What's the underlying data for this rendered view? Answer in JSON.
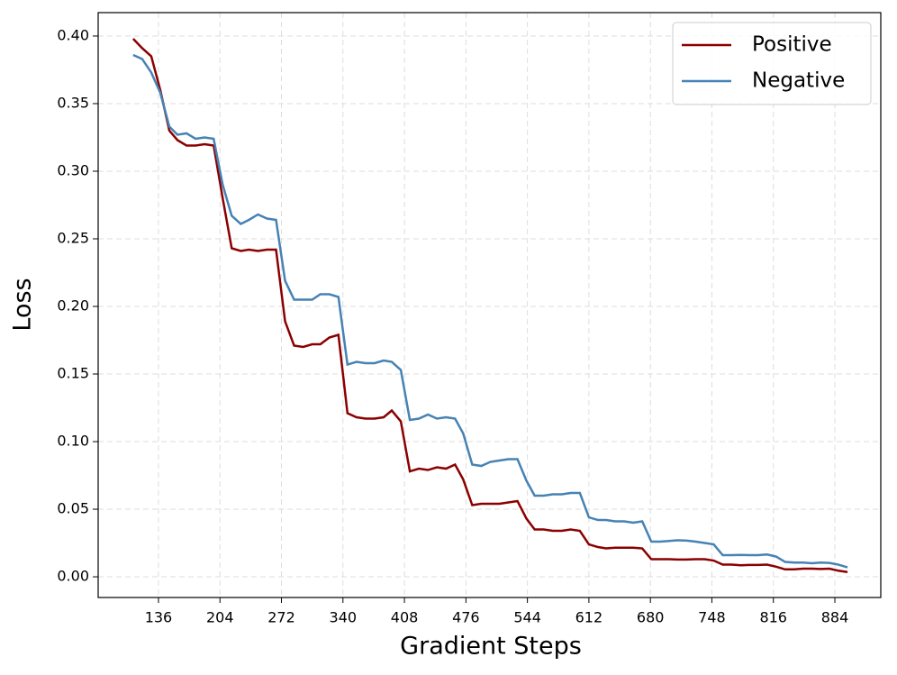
{
  "chart_data": {
    "type": "line",
    "x_label": "Gradient Steps",
    "y_label": "Loss",
    "x": [
      108,
      118,
      128,
      138,
      148,
      157,
      167,
      177,
      187,
      197,
      207,
      217,
      227,
      236,
      246,
      256,
      266,
      276,
      286,
      296,
      306,
      315,
      325,
      335,
      345,
      355,
      365,
      375,
      385,
      394,
      404,
      414,
      424,
      434,
      444,
      454,
      464,
      473,
      483,
      493,
      503,
      513,
      523,
      533,
      543,
      552,
      562,
      572,
      582,
      592,
      602,
      612,
      622,
      631,
      641,
      651,
      661,
      671,
      681,
      691,
      701,
      710,
      720,
      730,
      740,
      750,
      760,
      770,
      780,
      789,
      799,
      809,
      819,
      829,
      839,
      849,
      859,
      868,
      878,
      888,
      898
    ],
    "series": [
      {
        "name": "Positive",
        "color": "#8b0000",
        "values": [
          0.398,
          0.391,
          0.385,
          0.36,
          0.33,
          0.323,
          0.319,
          0.319,
          0.32,
          0.319,
          0.28,
          0.243,
          0.241,
          0.242,
          0.241,
          0.242,
          0.242,
          0.189,
          0.171,
          0.17,
          0.172,
          0.172,
          0.177,
          0.179,
          0.121,
          0.118,
          0.117,
          0.117,
          0.118,
          0.123,
          0.115,
          0.078,
          0.08,
          0.079,
          0.081,
          0.08,
          0.083,
          0.072,
          0.053,
          0.054,
          0.054,
          0.054,
          0.055,
          0.056,
          0.043,
          0.035,
          0.035,
          0.034,
          0.034,
          0.035,
          0.034,
          0.024,
          0.022,
          0.021,
          0.0215,
          0.0215,
          0.0215,
          0.021,
          0.013,
          0.013,
          0.013,
          0.0128,
          0.0128,
          0.013,
          0.013,
          0.012,
          0.009,
          0.009,
          0.0085,
          0.0088,
          0.0088,
          0.009,
          0.0075,
          0.0055,
          0.0055,
          0.006,
          0.006,
          0.0058,
          0.006,
          0.0045,
          0.0035
        ]
      },
      {
        "name": "Negative",
        "color": "#4682b4",
        "values": [
          0.386,
          0.383,
          0.373,
          0.358,
          0.333,
          0.327,
          0.328,
          0.324,
          0.325,
          0.324,
          0.29,
          0.267,
          0.261,
          0.264,
          0.268,
          0.265,
          0.264,
          0.219,
          0.205,
          0.205,
          0.205,
          0.209,
          0.209,
          0.207,
          0.157,
          0.159,
          0.158,
          0.158,
          0.16,
          0.159,
          0.153,
          0.116,
          0.117,
          0.12,
          0.117,
          0.118,
          0.117,
          0.106,
          0.083,
          0.082,
          0.085,
          0.086,
          0.087,
          0.087,
          0.071,
          0.06,
          0.06,
          0.061,
          0.061,
          0.062,
          0.062,
          0.044,
          0.042,
          0.042,
          0.041,
          0.041,
          0.04,
          0.041,
          0.026,
          0.026,
          0.0265,
          0.027,
          0.0268,
          0.026,
          0.025,
          0.024,
          0.016,
          0.016,
          0.0162,
          0.016,
          0.016,
          0.0165,
          0.015,
          0.011,
          0.0105,
          0.0105,
          0.01,
          0.0105,
          0.0103,
          0.009,
          0.007
        ]
      }
    ],
    "xlim": [
      69.3,
      934.8
    ],
    "ylim": [
      -0.0153,
      0.4173
    ],
    "xticks": [
      136,
      204,
      272,
      340,
      408,
      476,
      544,
      612,
      680,
      748,
      816,
      884
    ],
    "yticks": [
      {
        "value": 0,
        "label": "0.00"
      },
      0.05,
      {
        "value": 0.1,
        "label": "0.10"
      },
      0.15,
      {
        "value": 0.2,
        "label": "0.20"
      },
      0.25,
      {
        "value": 0.3,
        "label": "0.30"
      },
      0.35,
      {
        "value": 0.4,
        "label": "0.40"
      }
    ],
    "grid": true,
    "legend_position": "upper right"
  }
}
